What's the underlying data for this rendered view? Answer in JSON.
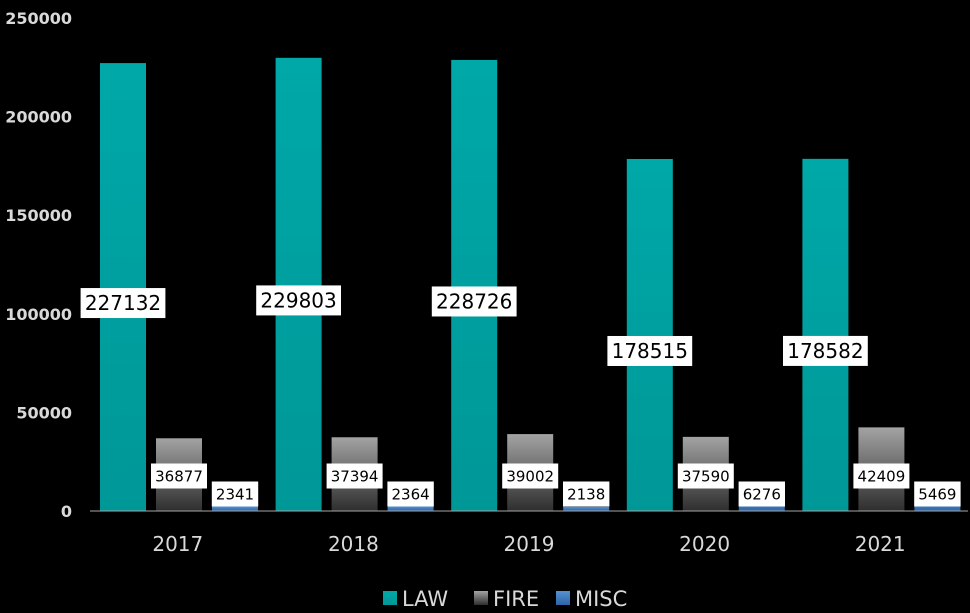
{
  "chart_data": {
    "type": "bar",
    "categories": [
      "2017",
      "2018",
      "2019",
      "2020",
      "2021"
    ],
    "series": [
      {
        "name": "LAW",
        "values": [
          227132,
          229803,
          228726,
          178515,
          178582
        ],
        "color": "#00a3a3"
      },
      {
        "name": "FIRE",
        "values": [
          36877,
          37394,
          39002,
          37590,
          42409
        ],
        "color": "#8c8c8c"
      },
      {
        "name": "MISC",
        "values": [
          2341,
          2364,
          2138,
          6276,
          5469
        ],
        "color": "#3b7bc0"
      }
    ],
    "yticks": [
      "0",
      "50000",
      "100000",
      "150000",
      "200000",
      "250000"
    ],
    "ylim": [
      0,
      250000
    ],
    "title": "",
    "xlabel": "",
    "ylabel": "",
    "grid": false,
    "legend_position": "bottom",
    "background": "#000000"
  }
}
